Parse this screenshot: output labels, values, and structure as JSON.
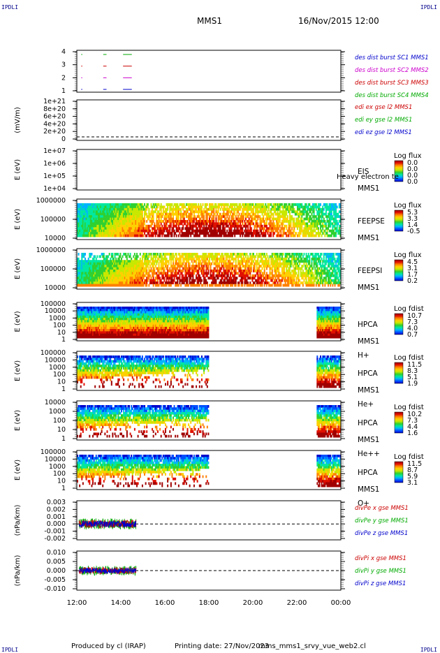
{
  "corner_labels": {
    "tl": "IPDLI",
    "tr": "IPDLI",
    "bl": "IPDLI",
    "br": "IPDLI"
  },
  "header": {
    "spacecraft": "MMS1",
    "datetime": "16/Nov/2015 12:00"
  },
  "footer": {
    "produced_by": "Produced by cl (IRAP)",
    "printing_date": "Printing date: 27/Nov/2023",
    "script_name": "mms_mms1_srvy_vue_web2.cl"
  },
  "x_axis": {
    "ticks": [
      "12:00",
      "14:00",
      "16:00",
      "18:00",
      "20:00",
      "22:00",
      "00:00"
    ]
  },
  "chart_data": [
    {
      "type": "line",
      "ylabel": "",
      "yticks": [
        "1",
        "2",
        "3",
        "4"
      ],
      "legend": [
        {
          "text": "des dist burst SC1 MMS1",
          "color": "#0000cc"
        },
        {
          "text": "des dist burst SC2 MMS2",
          "color": "#cc00cc"
        },
        {
          "text": "des dist burst SC3 MMS3",
          "color": "#cc0000"
        },
        {
          "text": "des dist burst SC4 MMS4",
          "color": "#00aa00"
        }
      ],
      "series": [
        {
          "y": 4,
          "segments": [
            [
              12.2,
              12.25
            ],
            [
              13.2,
              13.35
            ],
            [
              14.1,
              14.5
            ]
          ],
          "color": "#00aa00"
        },
        {
          "y": 3,
          "segments": [
            [
              12.2,
              12.25
            ],
            [
              13.2,
              13.35
            ],
            [
              14.1,
              14.5
            ]
          ],
          "color": "#cc0000"
        },
        {
          "y": 2,
          "segments": [
            [
              12.2,
              12.25
            ],
            [
              13.2,
              13.35
            ],
            [
              14.1,
              14.5
            ]
          ],
          "color": "#cc00cc"
        },
        {
          "y": 1,
          "segments": [
            [
              12.2,
              12.25
            ],
            [
              13.2,
              13.35
            ],
            [
              14.1,
              14.5
            ]
          ],
          "color": "#0000cc"
        }
      ]
    },
    {
      "type": "line",
      "ylabel": "(mV/m)",
      "yticks": [
        "0",
        "2e+20",
        "4e+20",
        "6e+20",
        "8e+20",
        "1e+21"
      ],
      "legend": [
        {
          "text": "edi ex gse l2 MMS1",
          "color": "#cc0000"
        },
        {
          "text": "edi ey gse l2 MMS1",
          "color": "#00aa00"
        },
        {
          "text": "edi ez gse l2 MMS1",
          "color": "#0000cc"
        }
      ]
    },
    {
      "type": "heatmap",
      "ylabel": "E (eV)",
      "yticks": [
        "1e+04",
        "1e+05",
        "1e+06",
        "1e+07"
      ],
      "instrument": [
        "EIS",
        "MMS1"
      ],
      "colorbar_title": "Log flux",
      "colorbar_ticks": [
        "0.0",
        "0.0",
        "0.0",
        "0.0"
      ],
      "overlay_text": "Heavy electron te"
    },
    {
      "type": "heatmap",
      "ylabel": "E (eV)",
      "yticks": [
        "10000",
        "100000",
        "1000000"
      ],
      "instrument": [
        "FEEPSE",
        "MMS1"
      ],
      "colorbar_title": "Log flux",
      "colorbar_ticks": [
        "5.3",
        "3.3",
        "1.4",
        "-0.5"
      ]
    },
    {
      "type": "heatmap",
      "ylabel": "E (eV)",
      "yticks": [
        "10000",
        "100000",
        "1000000"
      ],
      "instrument": [
        "FEEPSI",
        "MMS1"
      ],
      "colorbar_title": "Log flux",
      "colorbar_ticks": [
        "4.5",
        "3.1",
        "1.7",
        "0.2"
      ]
    },
    {
      "type": "heatmap",
      "ylabel": "E (eV)",
      "yticks": [
        "1",
        "10",
        "100",
        "1000",
        "10000",
        "100000"
      ],
      "instrument": [
        "HPCA",
        "MMS1",
        "H+"
      ],
      "colorbar_title": "Log fdist",
      "colorbar_ticks": [
        "10.7",
        "7.3",
        "4.0",
        "0.7"
      ]
    },
    {
      "type": "heatmap",
      "ylabel": "E (eV)",
      "yticks": [
        "1",
        "10",
        "100",
        "1000",
        "10000",
        "100000"
      ],
      "instrument": [
        "HPCA",
        "MMS1",
        "He+"
      ],
      "colorbar_title": "Log fdist",
      "colorbar_ticks": [
        "11.5",
        "8.3",
        "5.1",
        "1.9"
      ]
    },
    {
      "type": "heatmap",
      "ylabel": "E (eV)",
      "yticks": [
        "1",
        "10",
        "100",
        "1000",
        "10000"
      ],
      "instrument": [
        "HPCA",
        "MMS1",
        "He++"
      ],
      "colorbar_title": "Log fdist",
      "colorbar_ticks": [
        "10.2",
        "7.3",
        "4.4",
        "1.6"
      ]
    },
    {
      "type": "heatmap",
      "ylabel": "E (eV)",
      "yticks": [
        "1",
        "10",
        "100",
        "1000",
        "10000",
        "100000"
      ],
      "instrument": [
        "HPCA",
        "MMS1",
        "O+"
      ],
      "colorbar_title": "Log fdist",
      "colorbar_ticks": [
        "11.5",
        "8.7",
        "5.9",
        "3.1"
      ]
    },
    {
      "type": "line",
      "ylabel": "(nPa/km)",
      "yticks": [
        "-0.002",
        "-0.001",
        "0.000",
        "0.001",
        "0.002",
        "0.003"
      ],
      "legend": [
        {
          "text": "divPe x gse MMS1",
          "color": "#cc0000"
        },
        {
          "text": "divPe y gse MMS1",
          "color": "#00aa00"
        },
        {
          "text": "divPe z gse MMS1",
          "color": "#0000cc"
        }
      ]
    },
    {
      "type": "line",
      "ylabel": "(nPa/km)",
      "yticks": [
        "-0.010",
        "-0.005",
        "0.000",
        "0.005",
        "0.010"
      ],
      "legend": [
        {
          "text": "divPi x gse MMS1",
          "color": "#cc0000"
        },
        {
          "text": "divPi y gse MMS1",
          "color": "#00aa00"
        },
        {
          "text": "divPi z gse MMS1",
          "color": "#0000cc"
        }
      ]
    }
  ]
}
